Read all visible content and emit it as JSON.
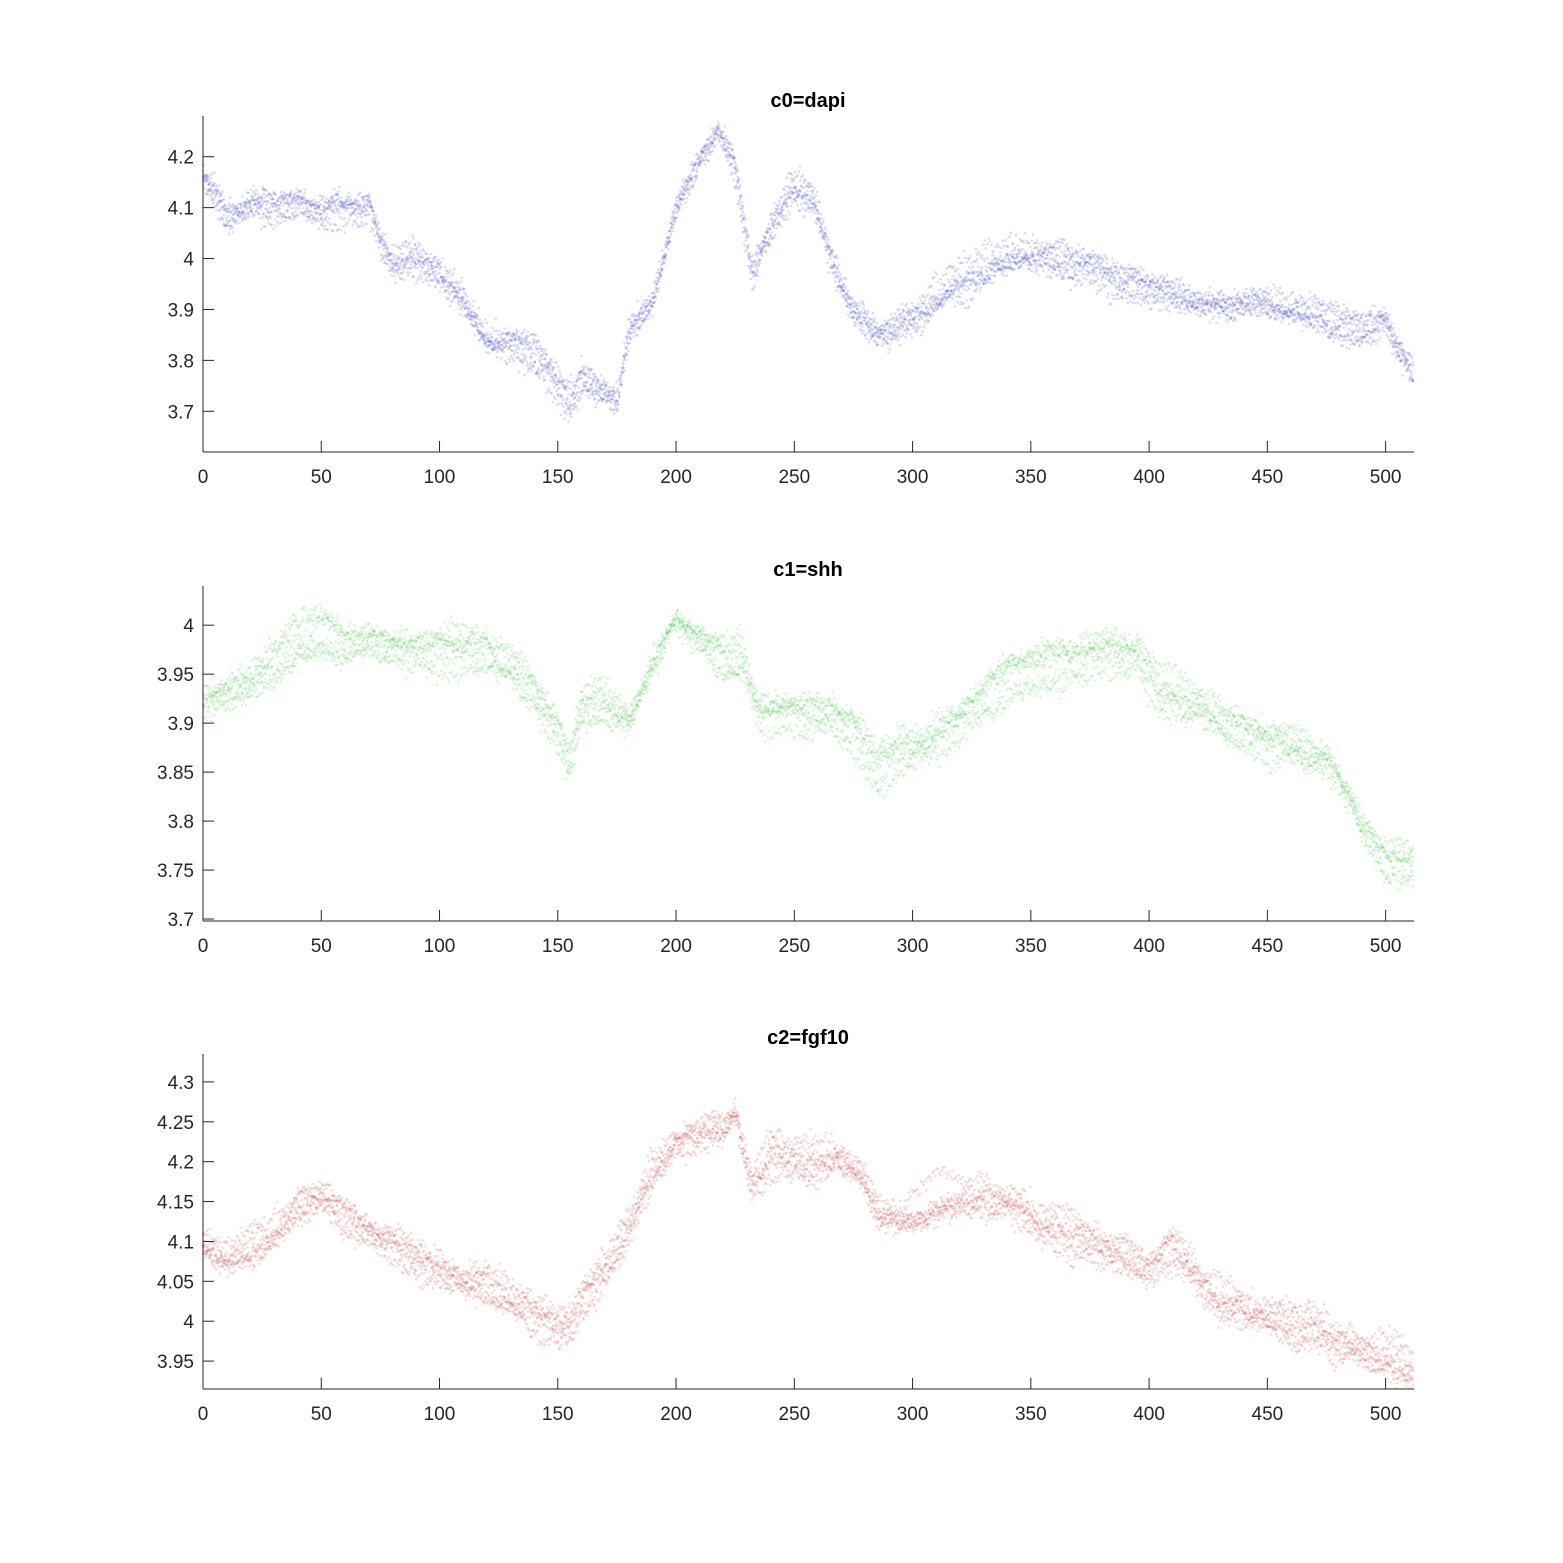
{
  "chart_data": [
    {
      "type": "scatter",
      "title": "c0=dapi",
      "xlim": [
        0,
        512
      ],
      "ylim": [
        3.62,
        4.28
      ],
      "xticks": [
        0,
        50,
        100,
        150,
        200,
        250,
        300,
        350,
        400,
        450,
        500
      ],
      "yticks": [
        3.7,
        3.8,
        3.9,
        4,
        4.1,
        4.2
      ],
      "color": "#1f1fbf",
      "grid": false,
      "series": [
        {
          "x": [
            0,
            5,
            10,
            20,
            30,
            40,
            50,
            60,
            70,
            75,
            80,
            90,
            100,
            110,
            120,
            130,
            140,
            150,
            155,
            160,
            170,
            175,
            180,
            190,
            200,
            210,
            218,
            225,
            232,
            240,
            250,
            258,
            265,
            275,
            285,
            295,
            305,
            320,
            340,
            355,
            370,
            385,
            400,
            420,
            435,
            450,
            465,
            480,
            490,
            500,
            505,
            512
          ],
          "y": [
            4.16,
            4.13,
            4.09,
            4.11,
            4.1,
            4.11,
            4.09,
            4.1,
            4.11,
            4.04,
            4.0,
            4.01,
            3.97,
            3.92,
            3.84,
            3.83,
            3.81,
            3.75,
            3.71,
            3.76,
            3.73,
            3.72,
            3.85,
            3.92,
            4.1,
            4.19,
            4.24,
            4.17,
            3.96,
            4.05,
            4.13,
            4.11,
            4.0,
            3.9,
            3.86,
            3.88,
            3.9,
            3.95,
            3.99,
            4.01,
            3.99,
            3.96,
            3.95,
            3.92,
            3.9,
            3.91,
            3.89,
            3.86,
            3.85,
            3.88,
            3.83,
            3.78
          ]
        }
      ]
    },
    {
      "type": "scatter",
      "title": "c1=shh",
      "xlim": [
        0,
        512
      ],
      "ylim": [
        3.698,
        4.04
      ],
      "xticks": [
        0,
        50,
        100,
        150,
        200,
        250,
        300,
        350,
        400,
        450,
        500
      ],
      "yticks": [
        3.7,
        3.75,
        3.8,
        3.85,
        3.9,
        3.95,
        4
      ],
      "color": "#1fbf1f",
      "grid": false,
      "series": [
        {
          "x": [
            0,
            10,
            20,
            30,
            40,
            50,
            60,
            80,
            100,
            110,
            120,
            130,
            140,
            150,
            155,
            160,
            170,
            180,
            190,
            200,
            210,
            220,
            228,
            235,
            245,
            255,
            265,
            275,
            285,
            295,
            305,
            320,
            340,
            360,
            380,
            395,
            405,
            420,
            435,
            450,
            465,
            475,
            485,
            490,
            500,
            512
          ],
          "y": [
            3.92,
            3.93,
            3.94,
            3.96,
            3.98,
            3.99,
            3.98,
            3.98,
            3.98,
            3.98,
            3.97,
            3.96,
            3.93,
            3.89,
            3.86,
            3.92,
            3.92,
            3.9,
            3.96,
            4.01,
            3.99,
            3.97,
            3.97,
            3.91,
            3.91,
            3.91,
            3.91,
            3.89,
            3.85,
            3.87,
            3.88,
            3.91,
            3.95,
            3.96,
            3.97,
            3.97,
            3.93,
            3.92,
            3.9,
            3.88,
            3.87,
            3.86,
            3.82,
            3.79,
            3.76,
            3.75
          ]
        }
      ]
    },
    {
      "type": "scatter",
      "title": "c2=fgf10",
      "xlim": [
        0,
        512
      ],
      "ylim": [
        3.915,
        4.335
      ],
      "xticks": [
        0,
        50,
        100,
        150,
        200,
        250,
        300,
        350,
        400,
        450,
        500
      ],
      "yticks": [
        3.95,
        4,
        4.05,
        4.1,
        4.15,
        4.2,
        4.25,
        4.3
      ],
      "color": "#bf1f1f",
      "grid": false,
      "series": [
        {
          "x": [
            0,
            10,
            20,
            30,
            40,
            50,
            60,
            70,
            80,
            90,
            100,
            110,
            120,
            130,
            140,
            150,
            155,
            160,
            170,
            180,
            190,
            200,
            210,
            220,
            225,
            232,
            240,
            250,
            260,
            270,
            278,
            285,
            295,
            310,
            330,
            345,
            355,
            370,
            385,
            400,
            410,
            420,
            430,
            440,
            450,
            460,
            470,
            480,
            490,
            500,
            512
          ],
          "y": [
            4.1,
            4.09,
            4.1,
            4.12,
            4.15,
            4.16,
            4.14,
            4.12,
            4.1,
            4.08,
            4.07,
            4.06,
            4.06,
            4.04,
            4.02,
            4.0,
            4.0,
            4.03,
            4.07,
            4.12,
            4.19,
            4.23,
            4.24,
            4.25,
            4.27,
            4.18,
            4.22,
            4.21,
            4.2,
            4.21,
            4.19,
            4.14,
            4.13,
            4.15,
            4.16,
            4.15,
            4.12,
            4.11,
            4.09,
            4.07,
            4.1,
            4.06,
            4.03,
            4.02,
            4.01,
            4.0,
            4.0,
            3.98,
            3.97,
            3.96,
            3.95
          ]
        }
      ]
    }
  ]
}
